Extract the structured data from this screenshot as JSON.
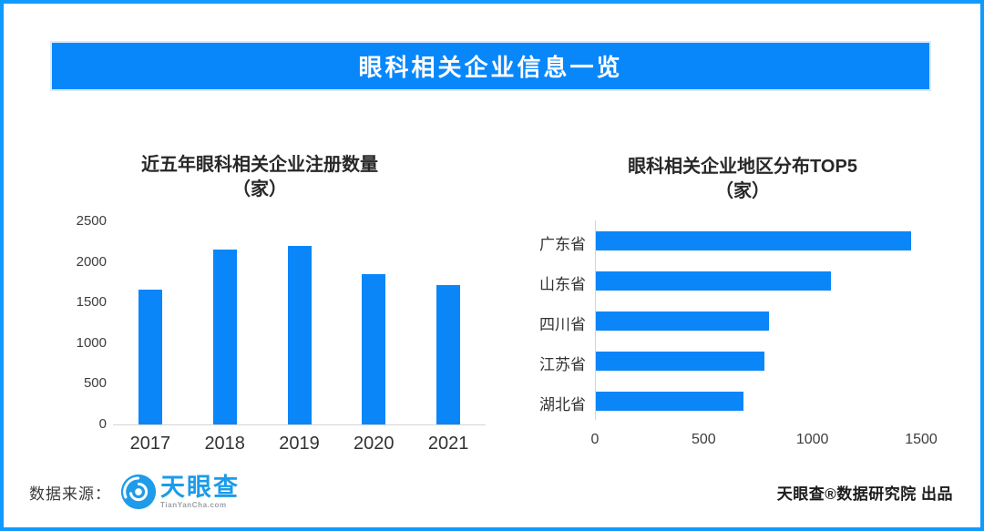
{
  "page": {
    "border_color": "#0f9afe",
    "accent_color": "#0a86f9"
  },
  "header": {
    "title": "眼科相关企业信息一览"
  },
  "chart_data": [
    {
      "type": "bar",
      "orientation": "vertical",
      "title": "近五年眼科相关企业注册数量",
      "subtitle": "（家）",
      "categories": [
        "2017",
        "2018",
        "2019",
        "2020",
        "2021"
      ],
      "values": [
        1660,
        2150,
        2200,
        1850,
        1720
      ],
      "ylabel": "",
      "xlabel": "",
      "ylim": [
        0,
        2500
      ],
      "yticks": [
        0,
        500,
        1000,
        1500,
        2000,
        2500
      ],
      "grid": false,
      "bar_color": "#0a86f9"
    },
    {
      "type": "bar",
      "orientation": "horizontal",
      "title": "眼科相关企业地区分布TOP5",
      "subtitle": "（家）",
      "categories": [
        "广东省",
        "山东省",
        "四川省",
        "江苏省",
        "湖北省"
      ],
      "values": [
        1450,
        1080,
        795,
        775,
        680
      ],
      "ylabel": "",
      "xlabel": "",
      "xlim": [
        0,
        1500
      ],
      "xticks": [
        0,
        500,
        1000,
        1500
      ],
      "grid": false,
      "bar_color": "#0a86f9"
    }
  ],
  "footer": {
    "source_label": "数据来源：",
    "logo_text": "天眼查",
    "logo_domain": "TianYanCha.com",
    "credit": "天眼查®数据研究院 出品"
  }
}
